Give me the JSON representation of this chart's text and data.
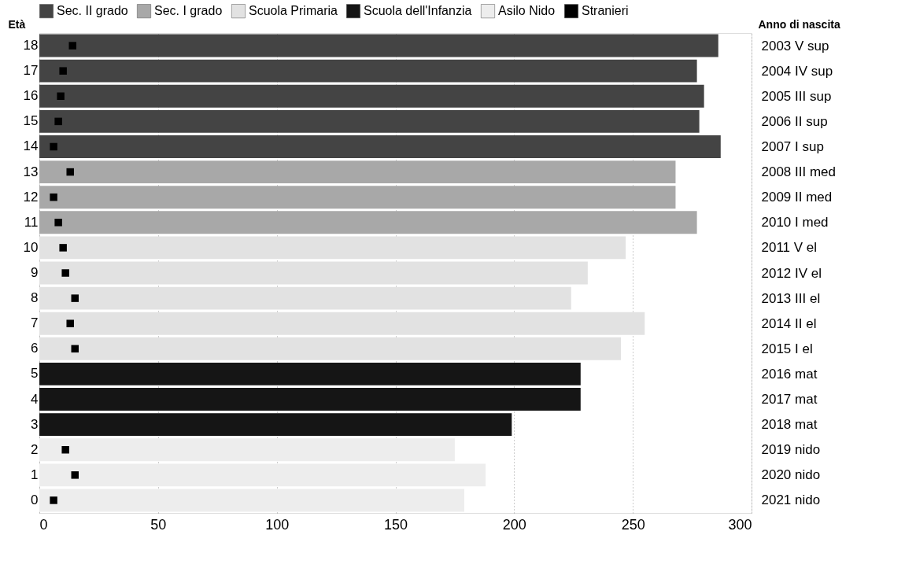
{
  "chart_data": {
    "type": "bar",
    "orientation": "horizontal",
    "ylabel": "Età",
    "y2label": "Anno di nascita",
    "categories": [
      "18",
      "17",
      "16",
      "15",
      "14",
      "13",
      "12",
      "11",
      "10",
      "9",
      "8",
      "7",
      "6",
      "5",
      "4",
      "3",
      "2",
      "1",
      "0"
    ],
    "y2_categories": [
      "2003 V sup",
      "2004 IV sup",
      "2005 III sup",
      "2006 II sup",
      "2007 I sup",
      "2008 III med",
      "2009 II med",
      "2010 I med",
      "2011 V el",
      "2012 IV el",
      "2013 III el",
      "2014 II el",
      "2015 I el",
      "2016 mat",
      "2017 mat",
      "2018 mat",
      "2019 nido",
      "2020 nido",
      "2021 nido"
    ],
    "xlim": [
      0,
      300
    ],
    "xticks": [
      0,
      50,
      100,
      150,
      200,
      250,
      300
    ],
    "grid": "x",
    "legend": "top",
    "series": [
      {
        "name": "Sec. II grado",
        "color": "#444444",
        "values": [
          286,
          277,
          280,
          278,
          287,
          null,
          null,
          null,
          null,
          null,
          null,
          null,
          null,
          null,
          null,
          null,
          null,
          null,
          null
        ]
      },
      {
        "name": "Sec. I grado",
        "color": "#a8a8a8",
        "values": [
          null,
          null,
          null,
          null,
          null,
          268,
          268,
          277,
          null,
          null,
          null,
          null,
          null,
          null,
          null,
          null,
          null,
          null,
          null
        ]
      },
      {
        "name": "Scuola Primaria",
        "color": "#e2e2e2",
        "values": [
          null,
          null,
          null,
          null,
          null,
          null,
          null,
          null,
          247,
          231,
          224,
          255,
          245,
          null,
          null,
          null,
          null,
          null,
          null
        ]
      },
      {
        "name": "Scuola dell'Infanzia",
        "color": "#151515",
        "values": [
          null,
          null,
          null,
          null,
          null,
          null,
          null,
          null,
          null,
          null,
          null,
          null,
          null,
          228,
          228,
          199,
          null,
          null,
          null
        ]
      },
      {
        "name": "Asilo Nido",
        "color": "#ededed",
        "values": [
          null,
          null,
          null,
          null,
          null,
          null,
          null,
          null,
          null,
          null,
          null,
          null,
          null,
          null,
          null,
          null,
          175,
          188,
          179
        ]
      },
      {
        "name": "Stranieri",
        "type": "scatter",
        "marker": "square",
        "color": "#000000",
        "values": [
          14,
          10,
          9,
          8,
          6,
          13,
          6,
          8,
          10,
          11,
          15,
          13,
          15,
          null,
          null,
          null,
          11,
          15,
          6
        ]
      }
    ]
  }
}
